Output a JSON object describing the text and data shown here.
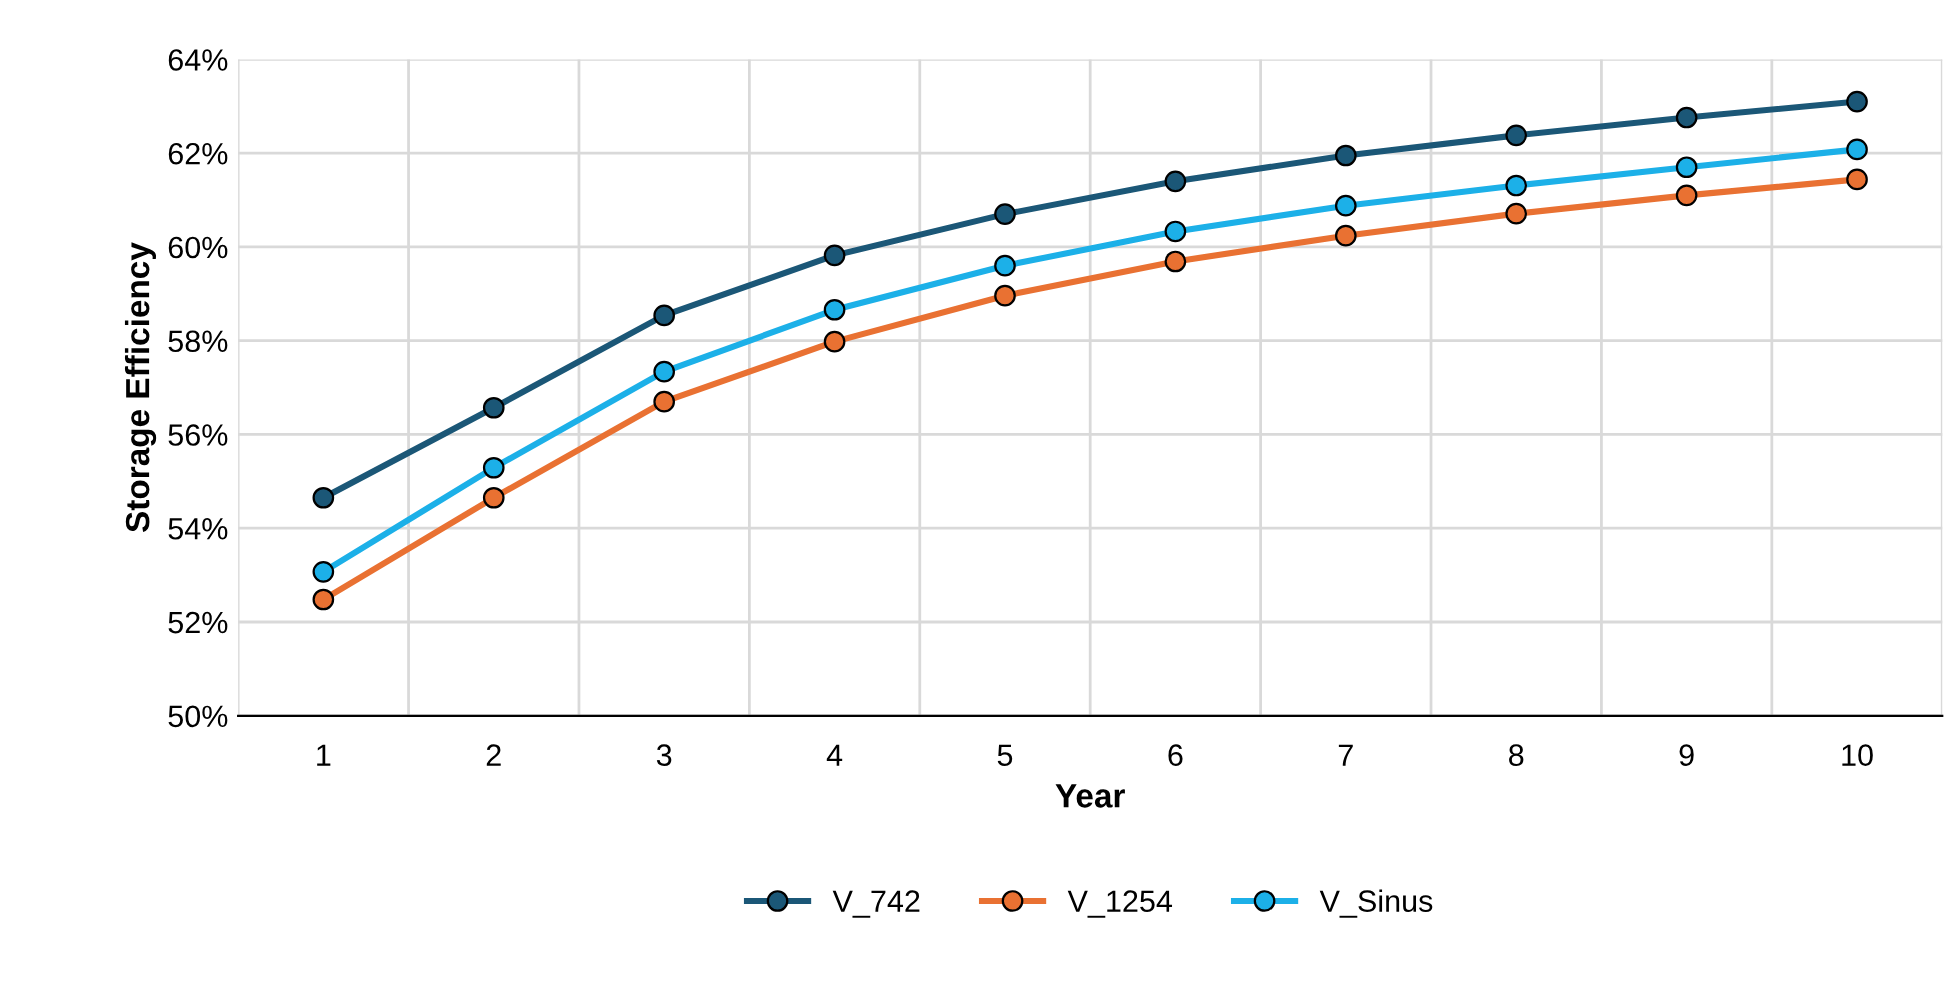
{
  "chart_data": {
    "type": "line",
    "xlabel": "Year",
    "ylabel": "Storage Efficiency",
    "categories": [
      "1",
      "2",
      "3",
      "4",
      "5",
      "6",
      "7",
      "8",
      "9",
      "10"
    ],
    "series": [
      {
        "name": "V_742",
        "color": "#1b5777",
        "values": [
          54.65,
          56.57,
          58.54,
          59.82,
          60.7,
          61.4,
          61.95,
          62.38,
          62.76,
          63.1
        ]
      },
      {
        "name": "V_1254",
        "color": "#e97132",
        "values": [
          52.48,
          54.65,
          56.7,
          57.98,
          58.96,
          59.69,
          60.24,
          60.71,
          61.1,
          61.44
        ]
      },
      {
        "name": "V_Sinus",
        "color": "#1cb0e8",
        "values": [
          53.07,
          55.29,
          57.34,
          58.66,
          59.6,
          60.33,
          60.88,
          61.31,
          61.7,
          62.08
        ]
      }
    ],
    "ylim": [
      50,
      64
    ],
    "yticks": [
      {
        "value": 50,
        "label": "50%"
      },
      {
        "value": 52,
        "label": "52%"
      },
      {
        "value": 54,
        "label": "54%"
      },
      {
        "value": 56,
        "label": "56%"
      },
      {
        "value": 58,
        "label": "58%"
      },
      {
        "value": 60,
        "label": "60%"
      },
      {
        "value": 62,
        "label": "62%"
      },
      {
        "value": 64,
        "label": "64%"
      }
    ],
    "grid": true,
    "legend": "bottom",
    "marker": "circle",
    "line_style": "solid"
  }
}
